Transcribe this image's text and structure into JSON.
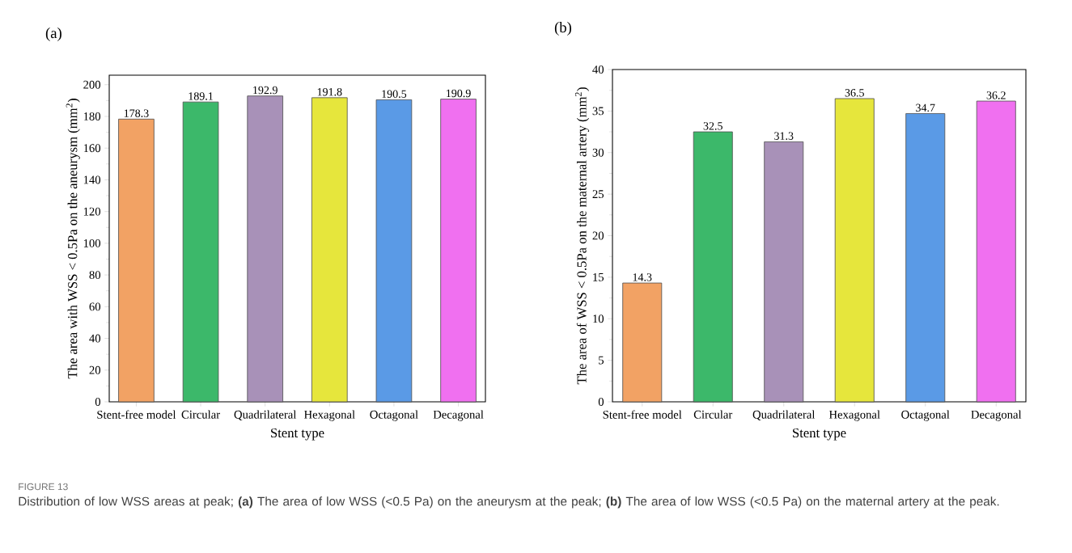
{
  "chart_data": [
    {
      "type": "bar",
      "title": "(a)",
      "xlabel": "Stent type",
      "ylabel": "The area with WSS < 0.5Pa on the aneurysm (mm$^{2}$)",
      "categories": [
        "Stent-free model",
        "Circular",
        "Quadrilateral",
        "Hexagonal",
        "Octagonal",
        "Decagonal"
      ],
      "values": [
        178.3,
        189.1,
        192.9,
        191.8,
        190.5,
        190.9
      ],
      "colors": [
        "#f2a264",
        "#3cb86a",
        "#a891b8",
        "#e6e63c",
        "#5a9ae6",
        "#f070f0"
      ],
      "ylim": [
        0,
        206
      ],
      "yticks": [
        0,
        20,
        40,
        60,
        80,
        100,
        120,
        140,
        160,
        180,
        200
      ],
      "data_labels": true,
      "annotations": [
        "FIGURE 13",
        "Distribution of low WSS areas at peak; **(a)** The area of low WSS (<0.5 Pa) on the aneurysm at the peak; **(b)** The area of low WSS (<0.5 Pa) on the maternal artery at the peak."
      ]
    },
    {
      "type": "bar",
      "title": "(b)",
      "xlabel": "Stent type",
      "ylabel": "The area of WSS < 0.5Pa on the maternal artery (mm$^{2}$)",
      "categories": [
        "Stent-free model",
        "Circular",
        "Quadrilateral",
        "Hexagonal",
        "Octagonal",
        "Decagonal"
      ],
      "values": [
        14.3,
        32.5,
        31.3,
        36.5,
        34.7,
        36.2
      ],
      "colors": [
        "#f2a264",
        "#3cb86a",
        "#a891b8",
        "#e6e63c",
        "#5a9ae6",
        "#f070f0"
      ],
      "ylim": [
        0,
        40
      ],
      "yticks": [
        0,
        5,
        10,
        15,
        20,
        25,
        30,
        35,
        40
      ],
      "data_labels": true
    }
  ]
}
